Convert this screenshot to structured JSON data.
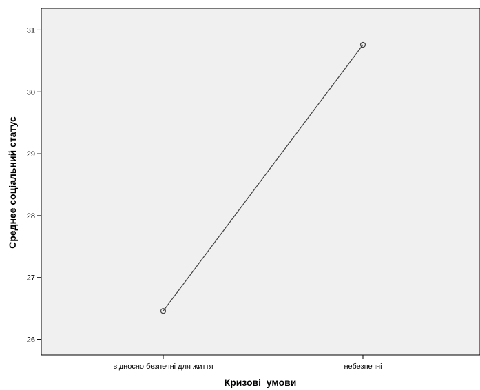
{
  "chart_data": {
    "type": "line",
    "xlabel": "Кризові_умови",
    "ylabel": "Среднее соціальний статус",
    "categories": [
      "відносно безпечні для життя",
      "небезпечні"
    ],
    "series": [
      {
        "values": [
          26.46,
          30.76
        ],
        "marker": "circle-open"
      }
    ],
    "ylim": [
      25.75,
      31.35
    ],
    "yticks": [
      26,
      27,
      28,
      29,
      30,
      31
    ],
    "grid": false,
    "colors": {
      "plot_background": "#f0f0f0",
      "line": "#404040",
      "axis": "#000000"
    }
  }
}
